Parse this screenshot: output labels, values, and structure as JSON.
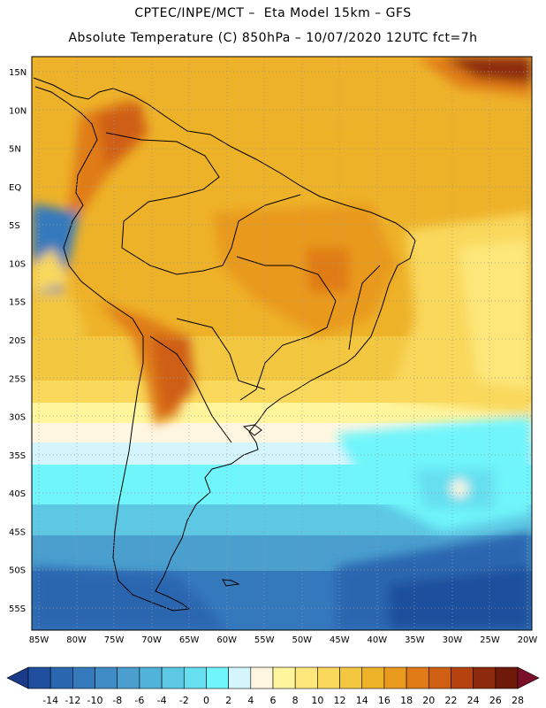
{
  "header": {
    "line1": "CPTEC/INPE/MCT –  Eta Model 15km – GFS",
    "line2": "Absolute Temperature (C) 850hPa – 10/07/2020 12UTC fct=7h"
  },
  "map": {
    "region": "South America",
    "lat_labels": [
      "15N",
      "10N",
      "5N",
      "EQ",
      "5S",
      "10S",
      "15S",
      "20S",
      "25S",
      "30S",
      "35S",
      "40S",
      "45S",
      "50S",
      "55S"
    ],
    "lon_labels": [
      "85W",
      "80W",
      "75W",
      "70W",
      "65W",
      "60W",
      "55W",
      "50W",
      "45W",
      "40W",
      "35W",
      "30W",
      "25W",
      "20W"
    ],
    "lat_values": [
      15,
      10,
      5,
      0,
      -5,
      -10,
      -15,
      -20,
      -25,
      -30,
      -35,
      -40,
      -45,
      -50,
      -55
    ],
    "lon_values": [
      -85,
      -80,
      -75,
      -70,
      -65,
      -60,
      -55,
      -50,
      -45,
      -40,
      -35,
      -30,
      -25,
      -20
    ]
  },
  "colorbar": {
    "labels": [
      "-14",
      "-12",
      "-10",
      "-8",
      "-6",
      "-4",
      "-2",
      "0",
      "2",
      "4",
      "6",
      "8",
      "10",
      "12",
      "14",
      "16",
      "18",
      "20",
      "22",
      "24",
      "26",
      "28"
    ],
    "colors": [
      "#1a3a8a",
      "#1f4f9e",
      "#2a66b0",
      "#3579bd",
      "#3f8cc6",
      "#4a9fcf",
      "#52b3da",
      "#5cc8e4",
      "#66dff0",
      "#70f5fb",
      "#d5f5fd",
      "#fff6e1",
      "#fff59d",
      "#fde77a",
      "#f9d85c",
      "#f3c740",
      "#eeb229",
      "#e99a1f",
      "#e07b17",
      "#cf5f12",
      "#b5420f",
      "#8d2a0d",
      "#6e1a0b",
      "#7a0f28"
    ]
  }
}
